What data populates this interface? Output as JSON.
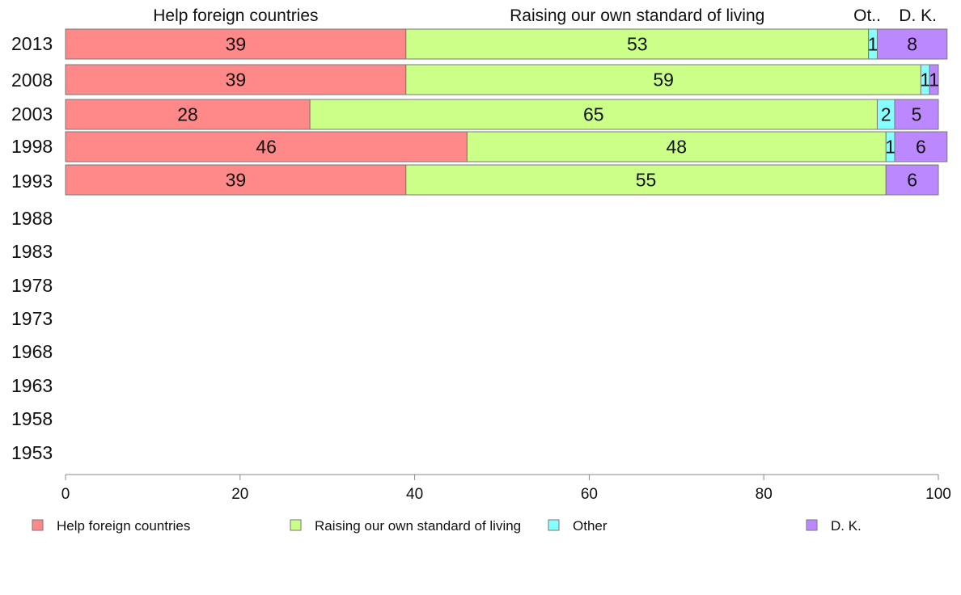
{
  "chart_data": {
    "type": "bar",
    "orientation": "horizontal",
    "stacked": true,
    "categories": [
      "2013",
      "2008",
      "2003",
      "1998",
      "1993",
      "1988",
      "1983",
      "1978",
      "1973",
      "1968",
      "1963",
      "1958",
      "1953"
    ],
    "series": [
      {
        "name": "Help foreign countries",
        "header": "Help foreign countries",
        "color": "#ff8888",
        "values": [
          39,
          39,
          28,
          46,
          39,
          null,
          null,
          null,
          null,
          null,
          null,
          null,
          null
        ]
      },
      {
        "name": "Raising our own standard of living",
        "header": "Raising our own standard of living",
        "color": "#ccff88",
        "values": [
          53,
          59,
          65,
          48,
          55,
          null,
          null,
          null,
          null,
          null,
          null,
          null,
          null
        ]
      },
      {
        "name": "Other",
        "header": "Ot..",
        "color": "#88ffff",
        "values": [
          1,
          1,
          2,
          1,
          0,
          null,
          null,
          null,
          null,
          null,
          null,
          null,
          null
        ]
      },
      {
        "name": "D. K.",
        "header": "D. K.",
        "color": "#bb88ff",
        "values": [
          8,
          1,
          5,
          6,
          6,
          null,
          null,
          null,
          null,
          null,
          null,
          null,
          null
        ]
      }
    ],
    "value_labels": [
      [
        "39",
        "53",
        "1",
        "8"
      ],
      [
        "39",
        "59",
        "1",
        "1"
      ],
      [
        "28",
        "65",
        "2",
        "5"
      ],
      [
        "46",
        "48",
        "1",
        "6"
      ],
      [
        "39",
        "55",
        "",
        "6"
      ]
    ],
    "xlim": [
      0,
      100
    ],
    "xticks": [
      "0",
      "20",
      "40",
      "60",
      "80",
      "100"
    ],
    "grid": false,
    "legend": "bottom"
  }
}
